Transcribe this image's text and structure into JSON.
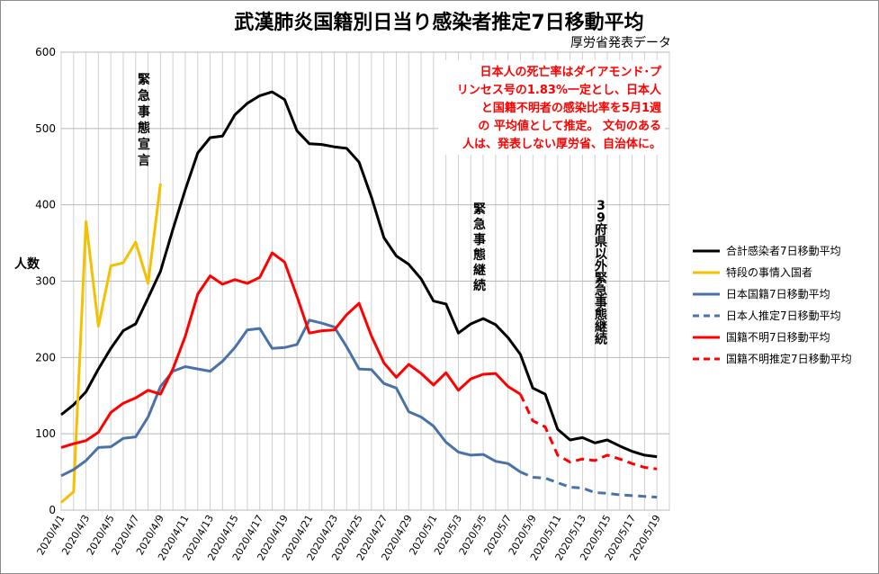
{
  "chart_data": {
    "type": "line",
    "title": "武漢肺炎国籍別日当り感染者推定7日移動平均",
    "subtitle": "厚労省発表データ",
    "ylabel": "人数",
    "ylim": [
      0,
      600
    ],
    "yticks": [
      0,
      100,
      200,
      300,
      400,
      500,
      600
    ],
    "grid": "horizontal and vertical",
    "legend_position": "right",
    "x": [
      "2020/4/1",
      "2020/4/2",
      "2020/4/3",
      "2020/4/4",
      "2020/4/5",
      "2020/4/6",
      "2020/4/7",
      "2020/4/8",
      "2020/4/9",
      "2020/4/10",
      "2020/4/11",
      "2020/4/12",
      "2020/4/13",
      "2020/4/14",
      "2020/4/15",
      "2020/4/16",
      "2020/4/17",
      "2020/4/18",
      "2020/4/19",
      "2020/4/20",
      "2020/4/21",
      "2020/4/22",
      "2020/4/23",
      "2020/4/24",
      "2020/4/25",
      "2020/4/26",
      "2020/4/27",
      "2020/4/28",
      "2020/4/29",
      "2020/4/30",
      "2020/5/1",
      "2020/5/2",
      "2020/5/3",
      "2020/5/4",
      "2020/5/5",
      "2020/5/6",
      "2020/5/7",
      "2020/5/8",
      "2020/5/9",
      "2020/5/10",
      "2020/5/11",
      "2020/5/12",
      "2020/5/13",
      "2020/5/14",
      "2020/5/15",
      "2020/5/16",
      "2020/5/17",
      "2020/5/18",
      "2020/5/19",
      "2020/5/20"
    ],
    "xtick_labels": [
      "2020/4/1",
      "2020/4/3",
      "2020/4/5",
      "2020/4/7",
      "2020/4/9",
      "2020/4/11",
      "2020/4/13",
      "2020/4/15",
      "2020/4/17",
      "2020/4/19",
      "2020/4/21",
      "2020/4/23",
      "2020/4/25",
      "2020/4/27",
      "2020/4/29",
      "2020/5/1",
      "2020/5/3",
      "2020/5/5",
      "2020/5/7",
      "2020/5/9",
      "2020/5/11",
      "2020/5/13",
      "2020/5/15",
      "2020/5/17",
      "2020/5/19"
    ],
    "series": [
      {
        "name": "合計感染者7日移動平均",
        "color": "#000000",
        "dash": false,
        "values": [
          125,
          138,
          155,
          185,
          212,
          235,
          244,
          278,
          313,
          368,
          420,
          468,
          488,
          490,
          518,
          533,
          543,
          548,
          538,
          497,
          480,
          479,
          476,
          474,
          456,
          410,
          357,
          333,
          322,
          303,
          274,
          270,
          232,
          244,
          251,
          243,
          226,
          204,
          160,
          152,
          106,
          92,
          95,
          88,
          92,
          84,
          77,
          72,
          70,
          null
        ]
      },
      {
        "name": "特段の事情入国者",
        "color": "#f5c000",
        "dash": false,
        "values": [
          10,
          24,
          378,
          241,
          320,
          324,
          351,
          297,
          428,
          null,
          null,
          null,
          null,
          null,
          null,
          null,
          null,
          null,
          null,
          null,
          null,
          null,
          null,
          null,
          null,
          null,
          null,
          null,
          null,
          null,
          null,
          null,
          null,
          null,
          null,
          null,
          null,
          null,
          null,
          null,
          null,
          null,
          null,
          null,
          null,
          null,
          null,
          null,
          null,
          null
        ]
      },
      {
        "name": "日本国籍7日移動平均",
        "color": "#4a72a8",
        "dash": false,
        "values": [
          45,
          53,
          65,
          82,
          83,
          94,
          96,
          122,
          162,
          182,
          188,
          185,
          182,
          195,
          213,
          236,
          238,
          212,
          213,
          217,
          249,
          245,
          240,
          214,
          185,
          184,
          166,
          160,
          129,
          122,
          110,
          89,
          76,
          72,
          73,
          64,
          61,
          50,
          null,
          null,
          null,
          null,
          null,
          null,
          null,
          null,
          null,
          null,
          null,
          null
        ]
      },
      {
        "name": "日本人推定7日移動平均",
        "color": "#4a72a8",
        "dash": true,
        "values": [
          null,
          null,
          null,
          null,
          null,
          null,
          null,
          null,
          null,
          null,
          null,
          null,
          null,
          null,
          null,
          null,
          null,
          null,
          null,
          null,
          null,
          null,
          null,
          null,
          null,
          null,
          null,
          null,
          null,
          null,
          null,
          null,
          null,
          null,
          null,
          null,
          null,
          50,
          43,
          42,
          36,
          30,
          29,
          23,
          22,
          20,
          19,
          18,
          17,
          null
        ]
      },
      {
        "name": "国籍不明7日移動平均",
        "color": "#ff0000",
        "dash": false,
        "values": [
          82,
          87,
          91,
          102,
          128,
          140,
          147,
          157,
          152,
          185,
          228,
          283,
          307,
          296,
          302,
          297,
          305,
          337,
          325,
          280,
          232,
          235,
          236,
          256,
          271,
          228,
          193,
          174,
          191,
          179,
          164,
          180,
          157,
          172,
          178,
          179,
          162,
          152,
          null,
          null,
          null,
          null,
          null,
          null,
          null,
          null,
          null,
          null,
          null,
          null
        ]
      },
      {
        "name": "国籍不明推定7日移動平均",
        "color": "#ff0000",
        "dash": true,
        "values": [
          null,
          null,
          null,
          null,
          null,
          null,
          null,
          null,
          null,
          null,
          null,
          null,
          null,
          null,
          null,
          null,
          null,
          null,
          null,
          null,
          null,
          null,
          null,
          null,
          null,
          null,
          null,
          null,
          null,
          null,
          null,
          null,
          null,
          null,
          null,
          null,
          null,
          152,
          117,
          109,
          72,
          63,
          67,
          65,
          72,
          67,
          61,
          56,
          54,
          null
        ]
      }
    ],
    "annotations": {
      "declaration": "緊急事態宣言",
      "continued": "緊急事態継続",
      "partial": "39府県以外緊急事態継続",
      "note": [
        "日本人の死亡率はダイアモンド･プ",
        "リンセス号の1.83%一定とし、日本人",
        "と国籍不明者の感染比率を5月1週",
        "の 平均値として推定。 文句のある",
        "人は、発表しない厚労省、自治体に。"
      ]
    }
  }
}
